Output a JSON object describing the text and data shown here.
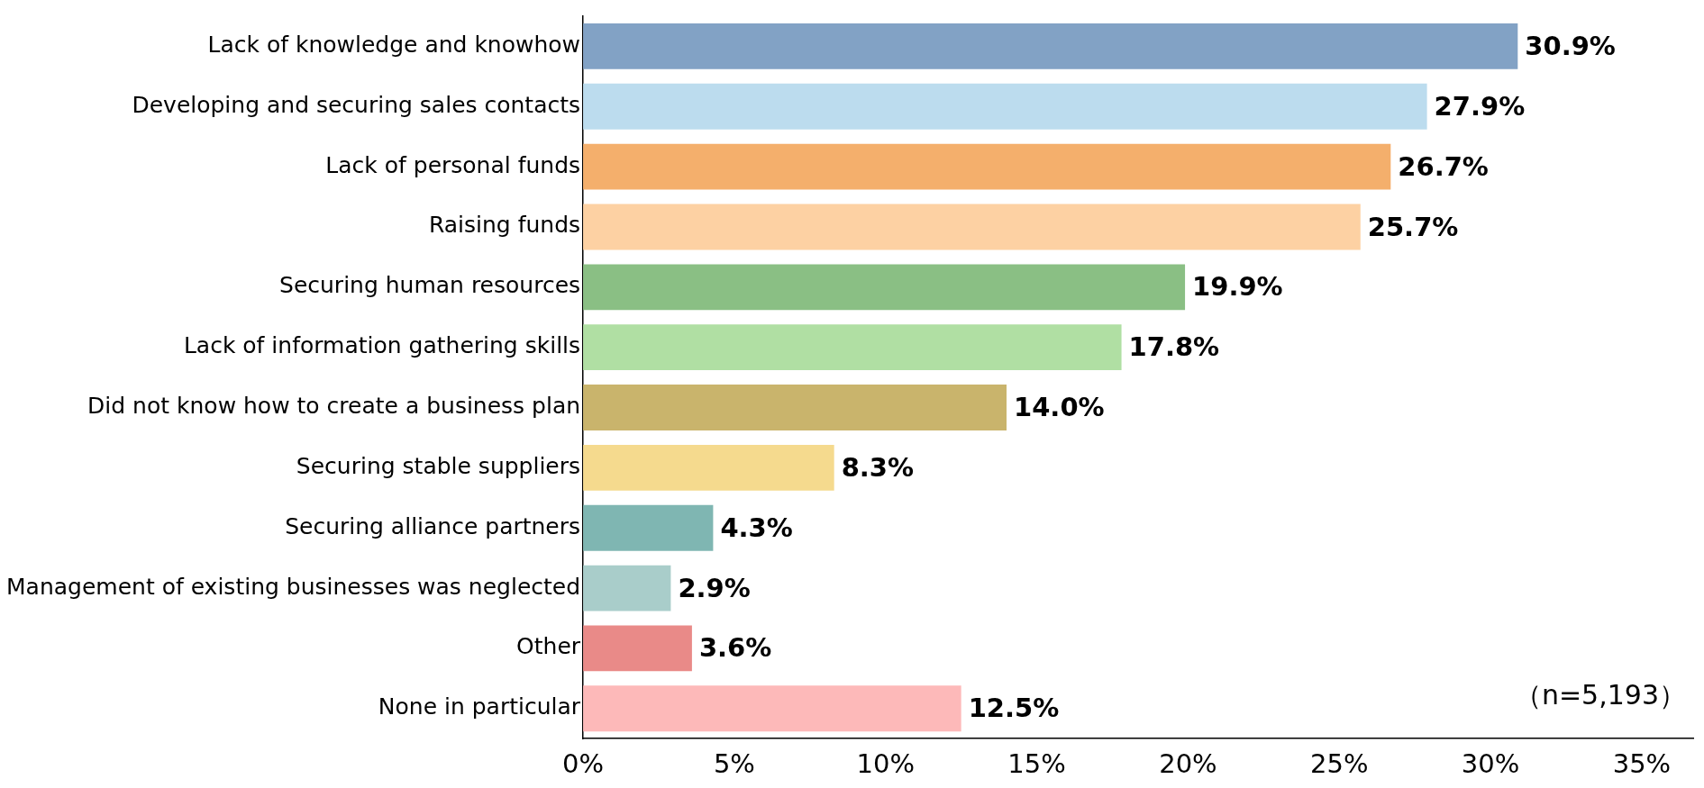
{
  "chart_data": {
    "type": "bar",
    "orientation": "horizontal",
    "categories": [
      "Lack of knowledge and knowhow",
      "Developing and securing sales contacts",
      "Lack of personal funds",
      "Raising funds",
      "Securing human resources",
      "Lack of information gathering skills",
      "Did not know how to create a business plan",
      "Securing stable suppliers",
      "Securing alliance partners",
      "Management of existing businesses was neglected",
      "Other",
      "None in particular"
    ],
    "values": [
      30.9,
      27.9,
      26.7,
      25.7,
      19.9,
      17.8,
      14.0,
      8.3,
      4.3,
      2.9,
      3.6,
      12.5
    ],
    "colors": [
      "#82a2c5",
      "#bcdcee",
      "#f4af6c",
      "#fdd1a3",
      "#8abf84",
      "#b0dfa3",
      "#c9b46c",
      "#f5da8e",
      "#7fb6b2",
      "#a9cdca",
      "#e98a88",
      "#fdb9b9"
    ],
    "value_labels": [
      "30.9%",
      "27.9%",
      "26.7%",
      "25.7%",
      "19.9%",
      "17.8%",
      "14.0%",
      "8.3%",
      "4.3%",
      "2.9%",
      "3.6%",
      "12.5%"
    ],
    "xlim": [
      0,
      36.7
    ],
    "xticks": [
      {
        "value": 0,
        "label": "0%"
      },
      {
        "value": 5,
        "label": "5%"
      },
      {
        "value": 10,
        "label": "10%"
      },
      {
        "value": 15,
        "label": "15%"
      },
      {
        "value": 20,
        "label": "20%"
      },
      {
        "value": 25,
        "label": "25%"
      },
      {
        "value": 30,
        "label": "30%"
      },
      {
        "value": 35,
        "label": "35%"
      }
    ],
    "grid": false,
    "legend": false,
    "annotations": [
      "（n=5,193）"
    ]
  }
}
